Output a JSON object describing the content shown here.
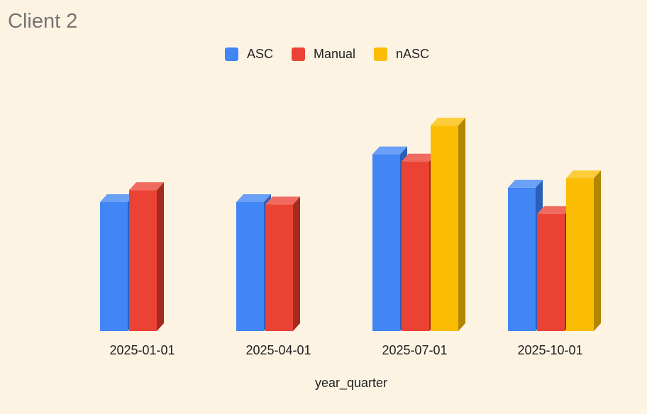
{
  "chart_data": {
    "type": "bar",
    "title": "Client 2",
    "xlabel": "year_quarter",
    "ylabel": "",
    "categories": [
      "2025-01-01",
      "2025-04-01",
      "2025-07-01",
      "2025-10-01"
    ],
    "series": [
      {
        "name": "ASC",
        "color": "#4285f4",
        "side_color": "#2b5fb8",
        "top_color": "#6aa0f7",
        "values": [
          54,
          54,
          74,
          60
        ]
      },
      {
        "name": "Manual",
        "color": "#ea4335",
        "side_color": "#a52a20",
        "top_color": "#f06b5f",
        "values": [
          59,
          53,
          71,
          49
        ]
      },
      {
        "name": "nASC",
        "color": "#fbbc04",
        "side_color": "#b38600",
        "top_color": "#fccc3a",
        "values": [
          null,
          null,
          86,
          64
        ]
      }
    ],
    "ylim": [
      0,
      100
    ],
    "grid": false,
    "legend_position": "top-center"
  }
}
